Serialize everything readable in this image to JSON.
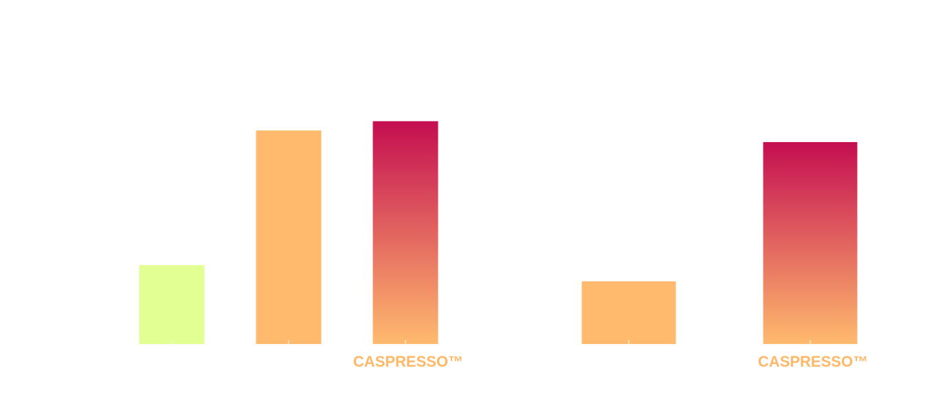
{
  "chart_data": [
    {
      "type": "bar",
      "categories": [
        "",
        "",
        "CASPRESSO™"
      ],
      "values": [
        34,
        92,
        96
      ],
      "ylim": [
        0,
        100
      ],
      "grid": false,
      "bar_styles": [
        "solid-lime",
        "solid-orange",
        "gradient-crimson-orange"
      ]
    },
    {
      "type": "bar",
      "categories": [
        "",
        "CASPRESSO™"
      ],
      "values": [
        27,
        87
      ],
      "ylim": [
        0,
        100
      ],
      "grid": false,
      "bar_styles": [
        "solid-orange",
        "gradient-crimson-orange"
      ]
    }
  ],
  "colors": {
    "lime": "#e2ff93",
    "orange": "#ffba6e",
    "crimson": "#c40e51",
    "label": "#ffb867",
    "divider": "#ffffff"
  }
}
